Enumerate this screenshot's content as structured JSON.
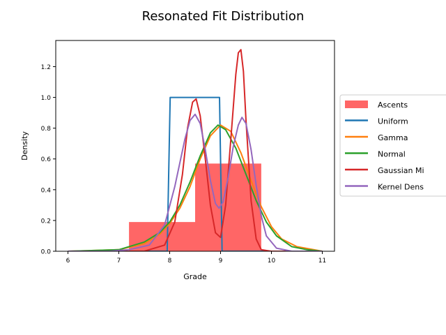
{
  "chart_data": {
    "type": "histogram",
    "title": "Resonated Fit Distribution",
    "xlabel": "Grade",
    "ylabel": "Density",
    "xlim": [
      5.76,
      11.24
    ],
    "ylim": [
      0,
      1.37
    ],
    "x_ticks": [
      "6",
      "7",
      "8",
      "9",
      "10",
      "11"
    ],
    "y_ticks": [
      "0.0",
      "0.2",
      "0.4",
      "0.6",
      "0.8",
      "1.0",
      "1.2"
    ],
    "grid": false,
    "legend_position": "right, outside plot",
    "histogram": {
      "name": "Ascents",
      "color": "#ff6666",
      "bins": [
        {
          "x0": 7.2,
          "x1": 8.5,
          "density": 0.19
        },
        {
          "x0": 8.5,
          "x1": 9.8,
          "density": 0.57
        }
      ]
    },
    "series": [
      {
        "name": "Uniform",
        "color": "#1f77b4",
        "x": [
          6.0,
          7.95,
          8.01,
          8.98,
          9.03,
          11.0
        ],
        "y": [
          0.0,
          0.0,
          1.0,
          1.0,
          0.0,
          0.0
        ]
      },
      {
        "name": "Gamma",
        "color": "#ff7f0e",
        "x": [
          6.0,
          7.0,
          7.5,
          7.8,
          8.0,
          8.2,
          8.4,
          8.6,
          8.8,
          9.0,
          9.2,
          9.4,
          9.6,
          9.8,
          10.0,
          10.2,
          10.5,
          11.0
        ],
        "y": [
          0.0,
          0.01,
          0.05,
          0.11,
          0.18,
          0.28,
          0.42,
          0.6,
          0.75,
          0.82,
          0.78,
          0.64,
          0.46,
          0.29,
          0.16,
          0.08,
          0.03,
          0.0
        ]
      },
      {
        "name": "Normal",
        "color": "#2ca02c",
        "x": [
          6.0,
          7.0,
          7.5,
          7.8,
          8.0,
          8.2,
          8.4,
          8.6,
          8.8,
          8.95,
          9.1,
          9.3,
          9.5,
          9.7,
          9.9,
          10.1,
          10.4,
          10.7,
          11.0
        ],
        "y": [
          0.0,
          0.01,
          0.06,
          0.12,
          0.19,
          0.3,
          0.45,
          0.62,
          0.77,
          0.82,
          0.79,
          0.67,
          0.5,
          0.33,
          0.19,
          0.1,
          0.03,
          0.01,
          0.0
        ]
      },
      {
        "name": "Gaussian Mixture",
        "color": "#d62728",
        "x": [
          6.0,
          7.5,
          7.9,
          8.1,
          8.25,
          8.35,
          8.45,
          8.52,
          8.6,
          8.7,
          8.8,
          8.9,
          9.0,
          9.1,
          9.2,
          9.3,
          9.35,
          9.4,
          9.45,
          9.5,
          9.6,
          9.7,
          9.8,
          10.0,
          11.0
        ],
        "y": [
          0.0,
          0.0,
          0.04,
          0.19,
          0.5,
          0.8,
          0.97,
          0.99,
          0.88,
          0.6,
          0.3,
          0.12,
          0.09,
          0.3,
          0.72,
          1.15,
          1.29,
          1.31,
          1.17,
          0.85,
          0.33,
          0.08,
          0.01,
          0.0,
          0.0
        ]
      },
      {
        "name": "Kernel Density",
        "color": "#9467bd",
        "x": [
          6.0,
          6.8,
          7.2,
          7.6,
          7.9,
          8.1,
          8.3,
          8.4,
          8.5,
          8.6,
          8.7,
          8.8,
          8.9,
          8.97,
          9.05,
          9.15,
          9.25,
          9.35,
          9.42,
          9.5,
          9.6,
          9.7,
          9.8,
          9.9,
          10.1,
          10.4,
          11.0
        ],
        "y": [
          0.0,
          0.0,
          0.01,
          0.04,
          0.17,
          0.42,
          0.73,
          0.85,
          0.89,
          0.83,
          0.66,
          0.46,
          0.31,
          0.28,
          0.32,
          0.48,
          0.68,
          0.82,
          0.87,
          0.83,
          0.66,
          0.43,
          0.23,
          0.1,
          0.02,
          0.0,
          0.0
        ]
      }
    ],
    "legend_entries": [
      "Ascents",
      "Uniform",
      "Gamma",
      "Normal",
      "Gaussian Mi",
      "Kernel Dens"
    ]
  }
}
